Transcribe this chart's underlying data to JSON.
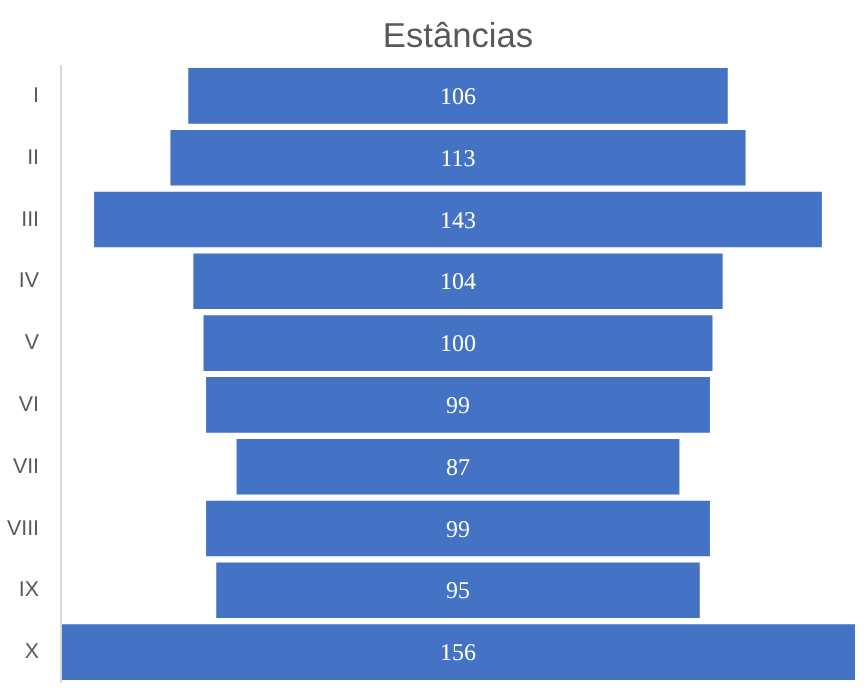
{
  "chart_data": {
    "type": "other",
    "title": "Estâncias",
    "categories": [
      "I",
      "II",
      "III",
      "IV",
      "V",
      "VI",
      "VII",
      "VIII",
      "IX",
      "X"
    ],
    "values": [
      106,
      113,
      143,
      104,
      100,
      99,
      87,
      99,
      95,
      156
    ],
    "color": "#4472c4",
    "data_labels": true
  }
}
